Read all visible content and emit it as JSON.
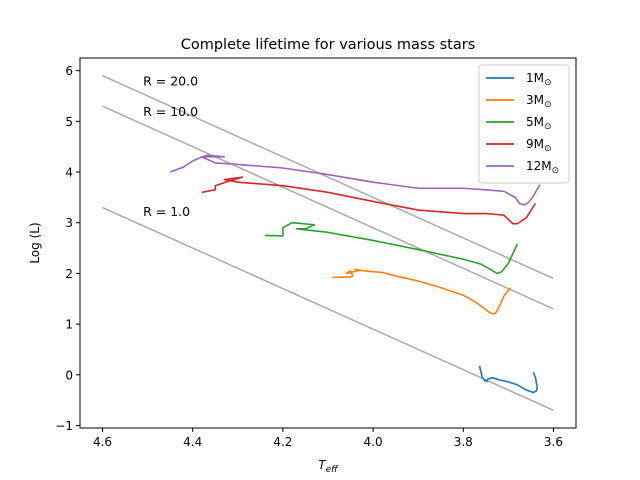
{
  "chart_data": {
    "type": "line",
    "title": "Complete lifetime for various mass stars",
    "xlabel_base": "T",
    "xlabel_sub": "eff",
    "ylabel": "Log (L)",
    "x_reversed": true,
    "xlim": [
      4.65,
      3.55
    ],
    "ylim": [
      -1.05,
      6.25
    ],
    "xticks": [
      4.6,
      4.4,
      4.2,
      4.0,
      3.8,
      3.6
    ],
    "xtick_labels": [
      "4.6",
      "4.4",
      "4.2",
      "4.0",
      "3.8",
      "3.6"
    ],
    "yticks": [
      -1,
      0,
      1,
      2,
      3,
      4,
      5,
      6
    ],
    "ytick_labels": [
      "−1",
      "0",
      "1",
      "2",
      "3",
      "4",
      "5",
      "6"
    ],
    "legend_position": "top-right",
    "radius_lines": [
      {
        "label": "R = 20.0",
        "color": "#aaaaaa",
        "x": [
          4.6,
          3.6
        ],
        "y": [
          5.9,
          1.9
        ],
        "label_at": [
          4.51,
          5.71
        ]
      },
      {
        "label": "R = 10.0",
        "color": "#aaaaaa",
        "x": [
          4.6,
          3.6
        ],
        "y": [
          5.3,
          1.3
        ],
        "label_at": [
          4.51,
          5.11
        ]
      },
      {
        "label": "R = 1.0",
        "color": "#aaaaaa",
        "x": [
          4.6,
          3.6
        ],
        "y": [
          3.3,
          -0.7
        ],
        "label_at": [
          4.51,
          3.13
        ]
      }
    ],
    "series": [
      {
        "name_base": "1M",
        "name_sub": "⊙",
        "color": "#1f77b4",
        "x": [
          3.764,
          3.762,
          3.758,
          3.752,
          3.748,
          3.745,
          3.735,
          3.72,
          3.7,
          3.68,
          3.66,
          3.645,
          3.638,
          3.636,
          3.64,
          3.645
        ],
        "y": [
          0.18,
          0.1,
          -0.05,
          -0.12,
          -0.13,
          -0.08,
          -0.06,
          -0.1,
          -0.14,
          -0.2,
          -0.3,
          -0.35,
          -0.32,
          -0.25,
          -0.05,
          0.05
        ]
      },
      {
        "name_base": "3M",
        "name_sub": "⊙",
        "color": "#ff7f0e",
        "x": [
          4.09,
          4.05,
          4.045,
          4.05,
          4.06,
          4.03,
          4.04,
          4.02,
          3.98,
          3.95,
          3.9,
          3.85,
          3.8,
          3.77,
          3.745,
          3.735,
          3.728,
          3.72,
          3.71,
          3.695
        ],
        "y": [
          1.92,
          1.93,
          1.95,
          2.05,
          2.0,
          2.06,
          2.08,
          2.05,
          2.02,
          1.95,
          1.85,
          1.72,
          1.57,
          1.42,
          1.25,
          1.2,
          1.22,
          1.35,
          1.55,
          1.72
        ]
      },
      {
        "name_base": "5M",
        "name_sub": "⊙",
        "color": "#2ca02c",
        "x": [
          4.24,
          4.2,
          4.2,
          4.18,
          4.13,
          4.15,
          4.17,
          4.1,
          4.0,
          3.9,
          3.8,
          3.76,
          3.74,
          3.725,
          3.715,
          3.7,
          3.68
        ],
        "y": [
          2.75,
          2.74,
          2.9,
          3.0,
          2.96,
          2.88,
          2.88,
          2.81,
          2.65,
          2.47,
          2.28,
          2.18,
          2.08,
          2.0,
          2.03,
          2.2,
          2.58
        ]
      },
      {
        "name_base": "9M",
        "name_sub": "⊙",
        "color": "#d62728",
        "x": [
          4.38,
          4.35,
          4.35,
          4.32,
          4.29,
          4.33,
          4.3,
          4.2,
          4.1,
          4.0,
          3.9,
          3.8,
          3.75,
          3.71,
          3.69,
          3.68,
          3.66,
          3.64
        ],
        "y": [
          3.6,
          3.65,
          3.73,
          3.82,
          3.9,
          3.85,
          3.8,
          3.73,
          3.6,
          3.42,
          3.25,
          3.18,
          3.18,
          3.15,
          2.98,
          2.98,
          3.1,
          3.38
        ]
      },
      {
        "name_base": "12M",
        "name_sub": "⊙",
        "color": "#9467bd",
        "x": [
          4.45,
          4.42,
          4.4,
          4.37,
          4.33,
          4.38,
          4.35,
          4.3,
          4.2,
          4.1,
          4.0,
          3.9,
          3.8,
          3.75,
          3.71,
          3.685,
          3.675,
          3.665,
          3.655,
          3.645,
          3.63
        ],
        "y": [
          4.0,
          4.1,
          4.22,
          4.33,
          4.3,
          4.3,
          4.18,
          4.15,
          4.08,
          3.95,
          3.8,
          3.68,
          3.68,
          3.65,
          3.62,
          3.5,
          3.38,
          3.35,
          3.4,
          3.52,
          3.75
        ]
      }
    ]
  }
}
